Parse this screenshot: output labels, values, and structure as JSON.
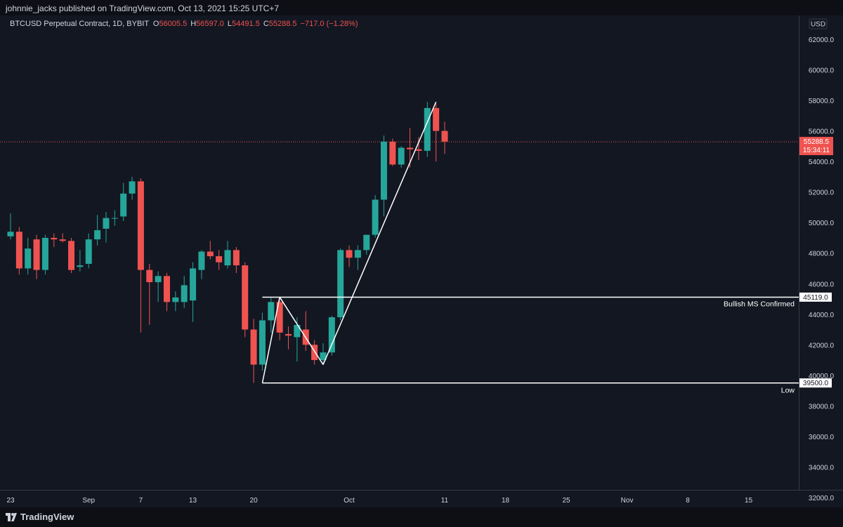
{
  "header": {
    "publisher_line": "johnnie_jacks published on TradingView.com, Oct 13, 2021 15:25 UTC+7"
  },
  "legend": {
    "title": "BTCUSD Perpetual Contract, 1D, BYBIT",
    "o_label": "O",
    "o_value": "56005.5",
    "h_label": "H",
    "h_value": "56597.0",
    "l_label": "L",
    "l_value": "54491.5",
    "c_label": "C",
    "c_value": "55288.5",
    "change": "−717.0 (−1.28%)"
  },
  "price_axis": {
    "currency": "USD",
    "ticks": [
      "62000.0",
      "60000.0",
      "58000.0",
      "56000.0",
      "54000.0",
      "52000.0",
      "50000.0",
      "48000.0",
      "46000.0",
      "44000.0",
      "42000.0",
      "40000.0",
      "38000.0",
      "36000.0",
      "34000.0",
      "32000.0"
    ],
    "last_price": "55288.5",
    "countdown": "15:34:11",
    "level_high": "45119.0",
    "level_low": "39500.0"
  },
  "time_axis": {
    "labels": [
      "23",
      "Sep",
      "7",
      "13",
      "20",
      "Oct",
      "11",
      "18",
      "25",
      "Nov",
      "8",
      "15"
    ]
  },
  "annotations": {
    "bullish_ms": "Bullish MS Confirmed",
    "low": "Low"
  },
  "footer": {
    "brand": "TradingView"
  },
  "colors": {
    "up": "#26a69a",
    "down": "#ef5350",
    "background": "#131722",
    "line": "#ffffff"
  },
  "chart_data": {
    "type": "candlestick",
    "symbol": "BTCUSD Perpetual Contract",
    "interval": "1D",
    "exchange": "BYBIT",
    "ylim": [
      32000,
      62500
    ],
    "candles": [
      {
        "o": 49100,
        "h": 50600,
        "l": 48900,
        "c": 49400
      },
      {
        "o": 49400,
        "h": 49700,
        "l": 46600,
        "c": 47000
      },
      {
        "o": 47000,
        "h": 49000,
        "l": 46600,
        "c": 48300
      },
      {
        "o": 48900,
        "h": 49200,
        "l": 46300,
        "c": 46900
      },
      {
        "o": 46900,
        "h": 49200,
        "l": 46600,
        "c": 49000
      },
      {
        "o": 49000,
        "h": 49300,
        "l": 48400,
        "c": 48900
      },
      {
        "o": 48900,
        "h": 49300,
        "l": 48700,
        "c": 48800
      },
      {
        "o": 48800,
        "h": 49000,
        "l": 46700,
        "c": 46900
      },
      {
        "o": 47100,
        "h": 48200,
        "l": 46800,
        "c": 47200
      },
      {
        "o": 47300,
        "h": 49300,
        "l": 47000,
        "c": 48900
      },
      {
        "o": 48900,
        "h": 50500,
        "l": 48500,
        "c": 49500
      },
      {
        "o": 49600,
        "h": 50700,
        "l": 48700,
        "c": 50300
      },
      {
        "o": 50300,
        "h": 50800,
        "l": 49800,
        "c": 50300
      },
      {
        "o": 50400,
        "h": 52600,
        "l": 50100,
        "c": 51900
      },
      {
        "o": 51900,
        "h": 53000,
        "l": 51500,
        "c": 52700
      },
      {
        "o": 52700,
        "h": 52900,
        "l": 42800,
        "c": 46900
      },
      {
        "o": 46900,
        "h": 47300,
        "l": 43300,
        "c": 46100
      },
      {
        "o": 46100,
        "h": 46800,
        "l": 44800,
        "c": 46500
      },
      {
        "o": 46500,
        "h": 46700,
        "l": 44200,
        "c": 44800
      },
      {
        "o": 44800,
        "h": 45500,
        "l": 44200,
        "c": 45100
      },
      {
        "o": 44800,
        "h": 46500,
        "l": 44400,
        "c": 45900
      },
      {
        "o": 44900,
        "h": 47400,
        "l": 43500,
        "c": 47000
      },
      {
        "o": 46900,
        "h": 48200,
        "l": 46300,
        "c": 48100
      },
      {
        "o": 48100,
        "h": 48800,
        "l": 47600,
        "c": 47800
      },
      {
        "o": 47800,
        "h": 48200,
        "l": 46900,
        "c": 47400
      },
      {
        "o": 47200,
        "h": 48800,
        "l": 47000,
        "c": 48200
      },
      {
        "o": 48200,
        "h": 48400,
        "l": 46700,
        "c": 47200
      },
      {
        "o": 47200,
        "h": 47400,
        "l": 42500,
        "c": 43000
      },
      {
        "o": 43000,
        "h": 43700,
        "l": 39500,
        "c": 40700
      },
      {
        "o": 40700,
        "h": 44100,
        "l": 40300,
        "c": 43600
      },
      {
        "o": 43600,
        "h": 45119,
        "l": 42800,
        "c": 44800
      },
      {
        "o": 44800,
        "h": 45119,
        "l": 42300,
        "c": 42800
      },
      {
        "o": 42700,
        "h": 43200,
        "l": 41700,
        "c": 42600
      },
      {
        "o": 42500,
        "h": 43800,
        "l": 40900,
        "c": 43300
      },
      {
        "o": 43000,
        "h": 44200,
        "l": 41600,
        "c": 42000
      },
      {
        "o": 42000,
        "h": 42300,
        "l": 40700,
        "c": 41000
      },
      {
        "o": 41000,
        "h": 42100,
        "l": 40700,
        "c": 41500
      },
      {
        "o": 41500,
        "h": 43900,
        "l": 41300,
        "c": 43800
      },
      {
        "o": 43800,
        "h": 48300,
        "l": 43600,
        "c": 48200
      },
      {
        "o": 48200,
        "h": 48500,
        "l": 47100,
        "c": 47700
      },
      {
        "o": 47700,
        "h": 48500,
        "l": 46900,
        "c": 48200
      },
      {
        "o": 48200,
        "h": 49200,
        "l": 47900,
        "c": 49200
      },
      {
        "o": 49200,
        "h": 51800,
        "l": 49000,
        "c": 51500
      },
      {
        "o": 51500,
        "h": 55700,
        "l": 50400,
        "c": 55300
      },
      {
        "o": 55300,
        "h": 55500,
        "l": 53700,
        "c": 53800
      },
      {
        "o": 53800,
        "h": 55000,
        "l": 53600,
        "c": 54900
      },
      {
        "o": 54900,
        "h": 56200,
        "l": 53600,
        "c": 54800
      },
      {
        "o": 54800,
        "h": 55600,
        "l": 54100,
        "c": 54700
      },
      {
        "o": 54700,
        "h": 57900,
        "l": 54300,
        "c": 57500
      },
      {
        "o": 57500,
        "h": 57800,
        "l": 54000,
        "c": 56000
      },
      {
        "o": 56000,
        "h": 56600,
        "l": 54500,
        "c": 55300
      }
    ],
    "horizontal_levels": [
      {
        "price": 45119.0,
        "label": "Bullish MS Confirmed"
      },
      {
        "price": 39500.0,
        "label": "Low"
      }
    ],
    "trend_lines": [
      {
        "from": {
          "bar": 29,
          "price": 39500
        },
        "to": {
          "bar": 31,
          "price": 45119
        }
      },
      {
        "from": {
          "bar": 31,
          "price": 45119
        },
        "to": {
          "bar": 36,
          "price": 40700
        }
      },
      {
        "from": {
          "bar": 36,
          "price": 40700
        },
        "to": {
          "bar": 49,
          "price": 57900
        }
      }
    ],
    "last_price": 55288.5
  }
}
